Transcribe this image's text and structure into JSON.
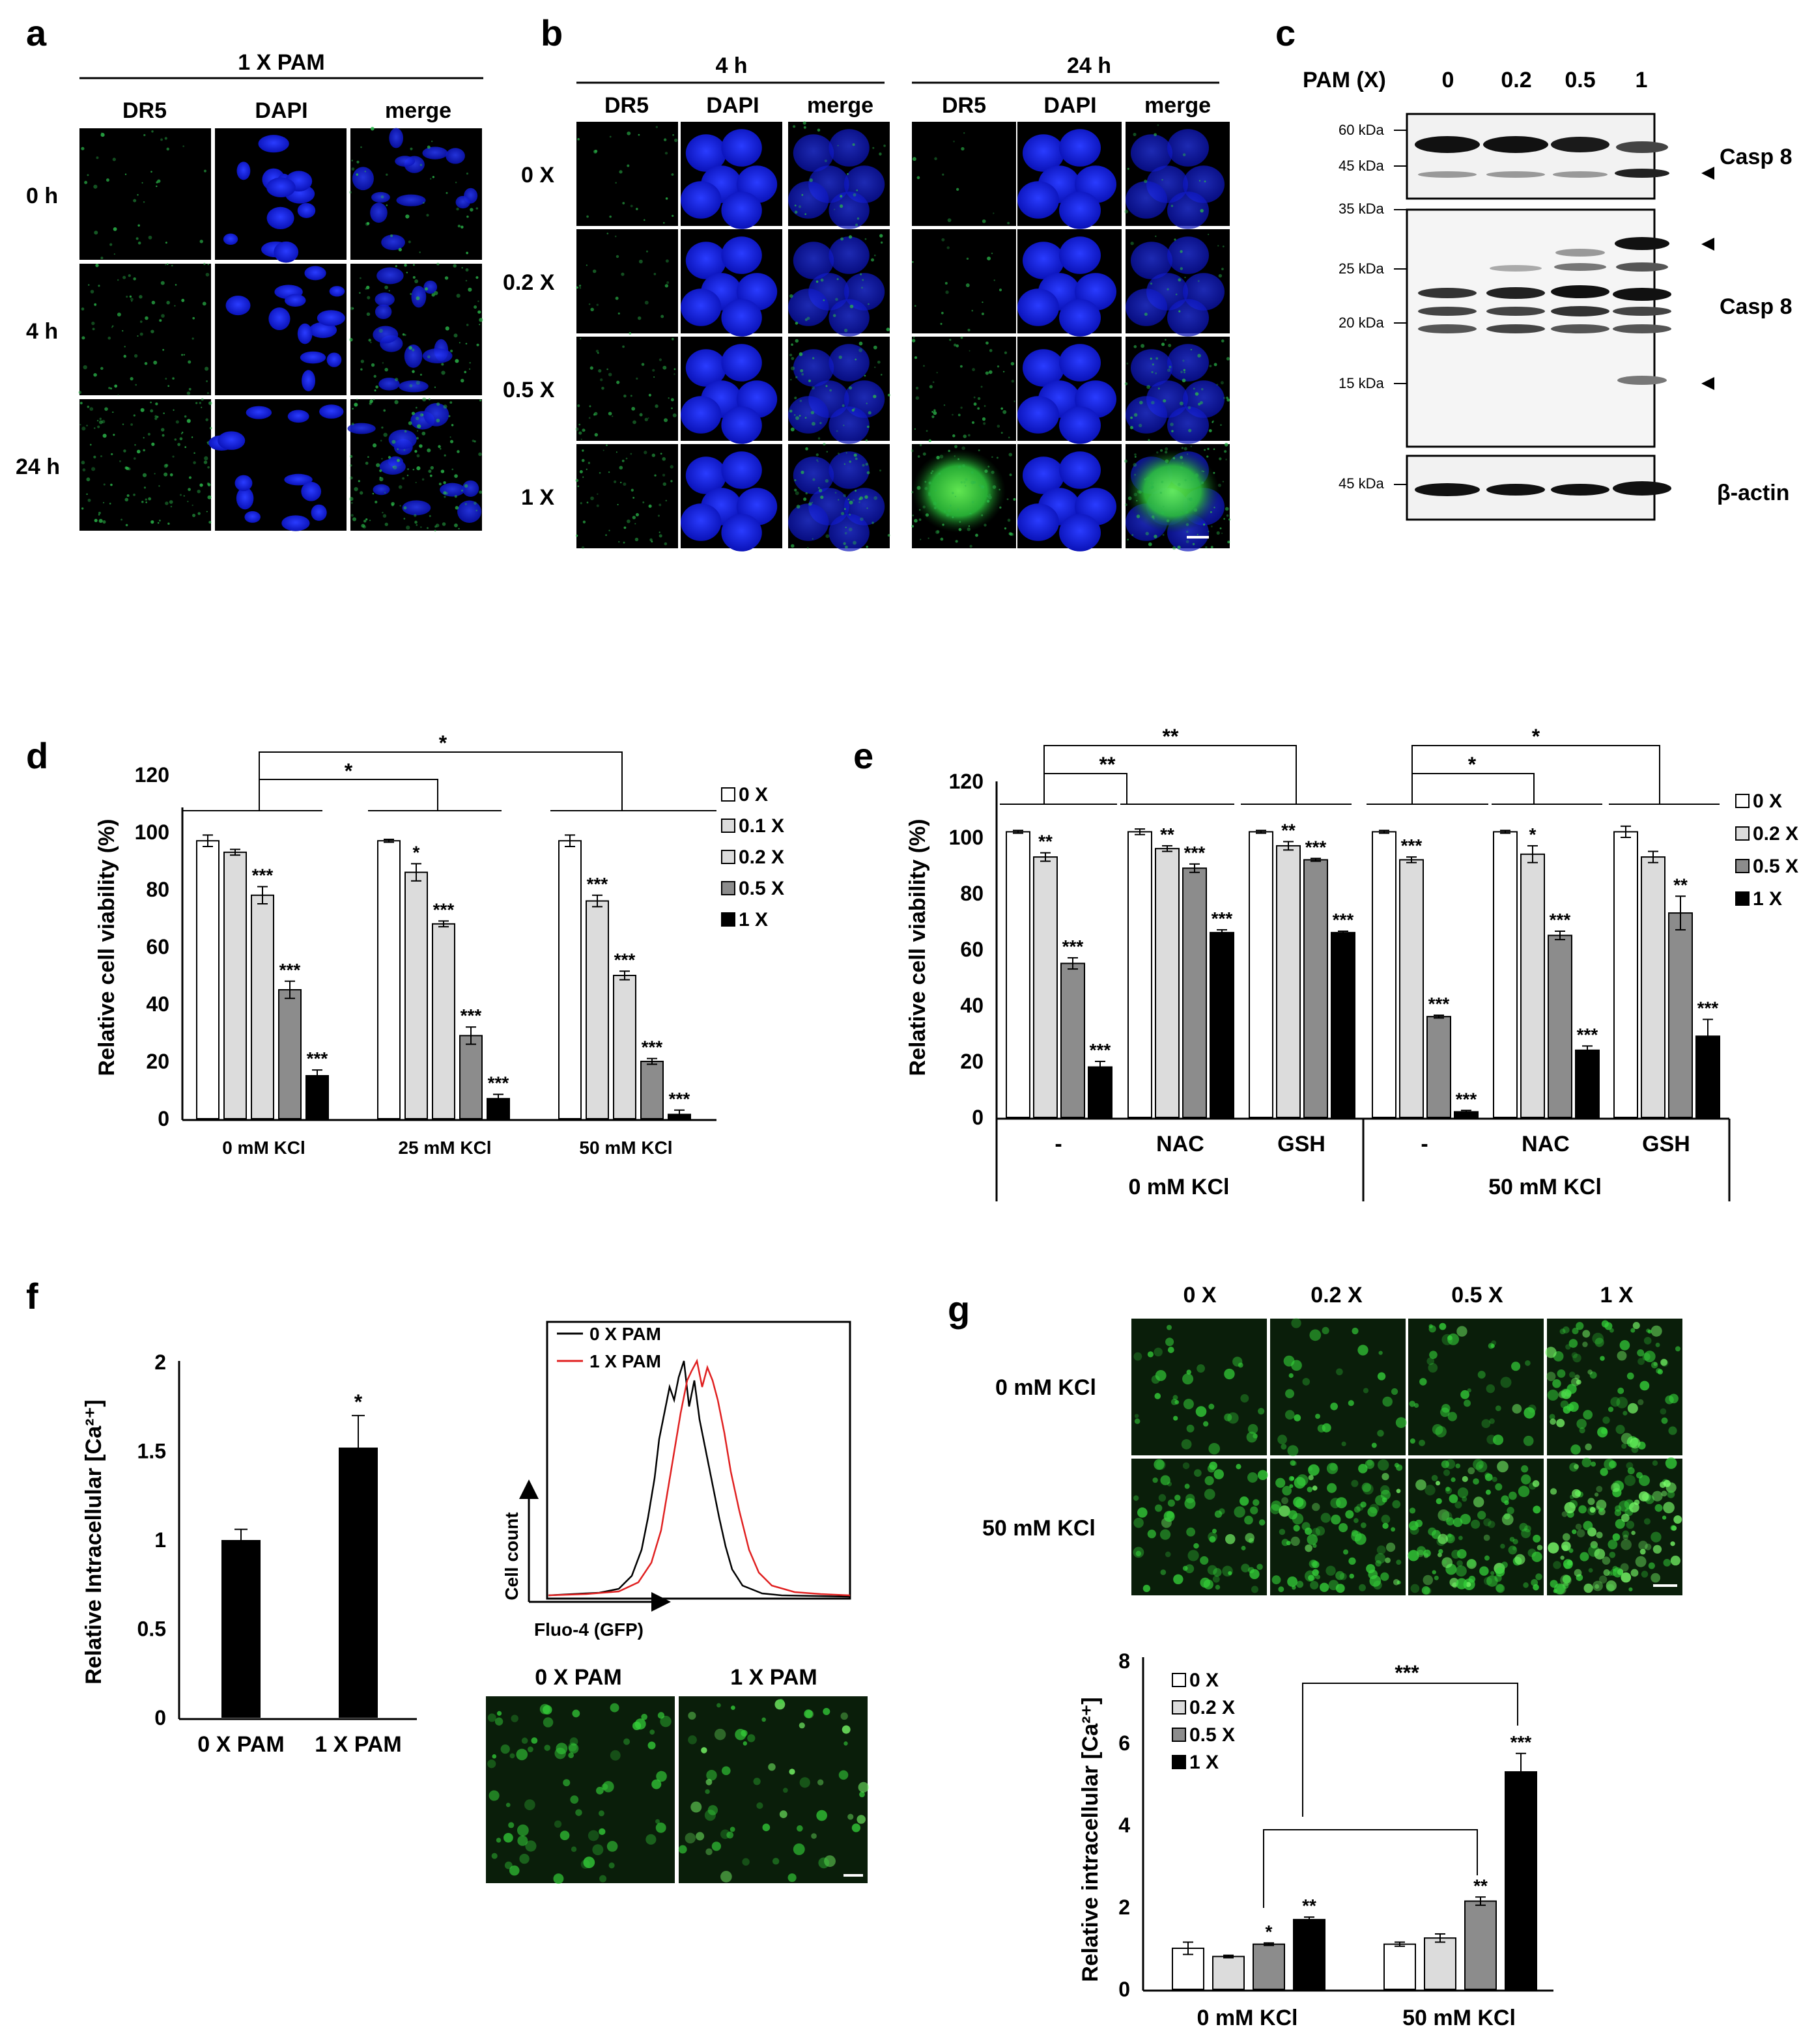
{
  "colors": {
    "dapi": "#0a12c8",
    "dr5": "#2bb84a",
    "fluo": "#35d33a",
    "white_bar": "#ffffff",
    "light_bar": "#dcdcdc",
    "mid_bar": "#8c8c8c",
    "black_bar": "#000000",
    "red_trace": "#e02020"
  },
  "panel_a": {
    "label": "a",
    "header": "1 X PAM",
    "columns": [
      "DR5",
      "DAPI",
      "merge"
    ],
    "rows": [
      "0 h",
      "4 h",
      "24 h"
    ]
  },
  "panel_b": {
    "label": "b",
    "groups": [
      "4 h",
      "24 h"
    ],
    "columns": [
      "DR5",
      "DAPI",
      "merge"
    ],
    "rows": [
      "0 X",
      "0.2 X",
      "0.5 X",
      "1 X"
    ]
  },
  "panel_c": {
    "label": "c",
    "pam_label": "PAM (X)",
    "doses": [
      "0",
      "0.2",
      "0.5",
      "1"
    ],
    "blot1_markers": [
      "60 kDa",
      "45 kDa"
    ],
    "blot2_markers": [
      "35 kDa",
      "25 kDa",
      "20 kDa",
      "15 kDa"
    ],
    "blot3_markers": [
      "45 kDa"
    ],
    "blot_labels": [
      "Casp 8",
      "Casp 8",
      "β-actin"
    ],
    "arrow_icon": "triangle-left-icon"
  },
  "panel_d": {
    "label": "d",
    "ylabel": "Relative cell viability (%)",
    "y_ticks": [
      "0",
      "20",
      "40",
      "60",
      "80",
      "100",
      "120"
    ],
    "sig_brackets": [
      "*",
      "*"
    ]
  },
  "panel_e": {
    "label": "e",
    "ylabel": "Relative cell viability (%)",
    "y_ticks": [
      "0",
      "20",
      "40",
      "60",
      "80",
      "100",
      "120"
    ],
    "sig_brackets": [
      "**",
      "**",
      "*",
      "*"
    ],
    "group_labels": [
      "0 mM KCl",
      "50 mM KCl"
    ]
  },
  "panel_f": {
    "label": "f",
    "ylabel": "Relative Intracellular [Ca²⁺]",
    "y_ticks": [
      "0",
      "0.5",
      "1",
      "1.5",
      "2"
    ],
    "hist_legend": [
      "0 X PAM",
      "1 X PAM"
    ],
    "hist_xlabel": "Fluo-4 (GFP)",
    "hist_ylabel": "Cell count",
    "image_labels": [
      "0 X PAM",
      "1 X PAM"
    ]
  },
  "panel_g": {
    "label": "g",
    "columns": [
      "0 X",
      "0.2 X",
      "0.5 X",
      "1 X"
    ],
    "rows": [
      "0 mM KCl",
      "50 mM KCl"
    ],
    "ylabel": "Relative intracellular [Ca²⁺]",
    "y_ticks": [
      "0",
      "2",
      "4",
      "6",
      "8"
    ],
    "sig_brackets": [
      "***"
    ]
  },
  "chart_data": [
    {
      "panel": "d",
      "type": "bar",
      "ylim": [
        0,
        120
      ],
      "categories": [
        "0 mM KCl",
        "25 mM KCl",
        "50 mM KCl"
      ],
      "series": [
        {
          "name": "0 X",
          "values": [
            97,
            97,
            97
          ],
          "errors": [
            2,
            0.5,
            2
          ],
          "sig": [
            "",
            "",
            ""
          ]
        },
        {
          "name": "0.1 X",
          "values": [
            93,
            86,
            76
          ],
          "errors": [
            1,
            3,
            2
          ],
          "sig": [
            "",
            "*",
            "***"
          ]
        },
        {
          "name": "0.2 X",
          "values": [
            78,
            68,
            50
          ],
          "errors": [
            3,
            1,
            1.5
          ],
          "sig": [
            "***",
            "***",
            "***"
          ]
        },
        {
          "name": "0.5 X",
          "values": [
            45,
            29,
            20
          ],
          "errors": [
            3,
            3,
            1
          ],
          "sig": [
            "***",
            "***",
            "***"
          ]
        },
        {
          "name": "1 X",
          "values": [
            15,
            7,
            1.5
          ],
          "errors": [
            2,
            1.5,
            1.5
          ],
          "sig": [
            "***",
            "***",
            "***"
          ]
        }
      ]
    },
    {
      "panel": "e",
      "type": "bar",
      "ylim": [
        0,
        120
      ],
      "categories": [
        "-",
        "NAC",
        "GSH",
        "-",
        "NAC",
        "GSH"
      ],
      "series": [
        {
          "name": "0 X",
          "values": [
            102,
            102,
            102,
            102,
            102,
            102
          ],
          "errors": [
            0.5,
            1,
            0.5,
            0.5,
            0.5,
            2
          ],
          "sig": [
            "",
            "",
            "",
            "",
            "",
            ""
          ]
        },
        {
          "name": "0.2 X",
          "values": [
            93,
            96,
            97,
            92,
            94,
            93
          ],
          "errors": [
            1.5,
            1,
            1.5,
            1,
            3,
            2
          ],
          "sig": [
            "**",
            "**",
            "**",
            "***",
            "*",
            ""
          ]
        },
        {
          "name": "0.5 X",
          "values": [
            55,
            89,
            92,
            36,
            65,
            73
          ],
          "errors": [
            2,
            1.5,
            0.5,
            0.5,
            1.5,
            6
          ],
          "sig": [
            "***",
            "***",
            "***",
            "***",
            "***",
            "**"
          ]
        },
        {
          "name": "1 X",
          "values": [
            18,
            66,
            66,
            2,
            24,
            29
          ],
          "errors": [
            2,
            1,
            0.5,
            0.5,
            1.5,
            6
          ],
          "sig": [
            "***",
            "***",
            "***",
            "***",
            "***",
            "***"
          ]
        }
      ]
    },
    {
      "panel": "f",
      "type": "bar",
      "ylim": [
        0,
        2
      ],
      "categories": [
        "0 X PAM",
        "1 X PAM"
      ],
      "values": [
        1.0,
        1.52
      ],
      "errors": [
        0.06,
        0.18
      ],
      "sig": [
        "",
        "*"
      ]
    },
    {
      "panel": "g",
      "type": "bar",
      "ylim": [
        0,
        8
      ],
      "categories": [
        "0 mM KCl",
        "50 mM KCl"
      ],
      "series": [
        {
          "name": "0 X",
          "values": [
            1.0,
            1.1
          ],
          "errors": [
            0.15,
            0.05
          ],
          "sig": [
            "",
            ""
          ]
        },
        {
          "name": "0.2 X",
          "values": [
            0.8,
            1.25
          ],
          "errors": [
            0.03,
            0.1
          ],
          "sig": [
            "",
            ""
          ]
        },
        {
          "name": "0.5 X",
          "values": [
            1.1,
            2.15
          ],
          "errors": [
            0.03,
            0.1
          ],
          "sig": [
            "*",
            "**"
          ]
        },
        {
          "name": "1 X",
          "values": [
            1.7,
            5.3
          ],
          "errors": [
            0.06,
            0.45
          ],
          "sig": [
            "**",
            "***"
          ]
        }
      ]
    }
  ]
}
